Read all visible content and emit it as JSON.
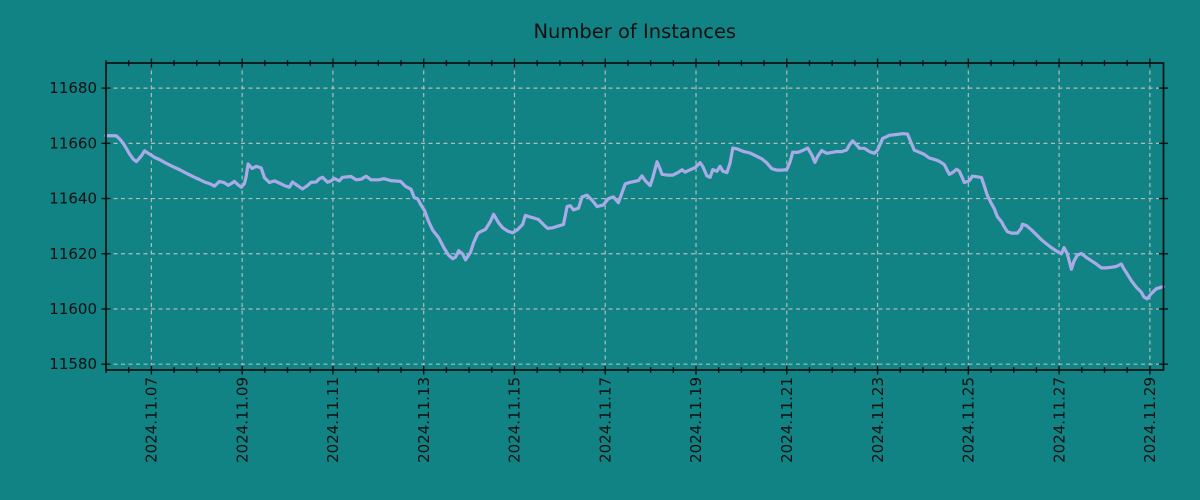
{
  "chart_data": {
    "type": "line",
    "title": "Number of Instances",
    "xlabel": "",
    "ylabel": "",
    "legend": null,
    "grid": true,
    "x_unit": "date (day of November 2024)",
    "xlim": [
      6.0,
      29.3
    ],
    "ylim": [
      11577.9,
      11689.1
    ],
    "y_ticks": [
      11580,
      11600,
      11620,
      11640,
      11660,
      11680
    ],
    "x_ticks": {
      "major_days": [
        7,
        9,
        11,
        13,
        15,
        17,
        19,
        21,
        23,
        25,
        27,
        29
      ],
      "labels": [
        "2024.11.07",
        "2024.11.09",
        "2024.11.11",
        "2024.11.13",
        "2024.11.15",
        "2024.11.17",
        "2024.11.19",
        "2024.11.21",
        "2024.11.23",
        "2024.11.25",
        "2024.11.27",
        "2024.11.29"
      ],
      "minor_step": 0.5,
      "label_rotation_deg": 90
    },
    "colors": {
      "background": "#118384",
      "line": "#a9abe8",
      "grid": "#b8bfbf",
      "axis": "#101010",
      "text": "#101010"
    },
    "series": [
      {
        "name": "Number of Instances",
        "color": "#a9abe8",
        "points": [
          [
            6.0,
            11662.8
          ],
          [
            6.23,
            11662.7
          ],
          [
            6.3,
            11661.6
          ],
          [
            6.38,
            11660.0
          ],
          [
            6.45,
            11658.1
          ],
          [
            6.52,
            11656.1
          ],
          [
            6.6,
            11654.3
          ],
          [
            6.67,
            11653.4
          ],
          [
            6.71,
            11654.1
          ],
          [
            6.78,
            11655.5
          ],
          [
            6.85,
            11657.3
          ],
          [
            6.93,
            11656.4
          ],
          [
            7.0,
            11655.7
          ],
          [
            7.07,
            11654.9
          ],
          [
            7.18,
            11654.1
          ],
          [
            7.29,
            11653.1
          ],
          [
            7.4,
            11652.2
          ],
          [
            7.51,
            11651.3
          ],
          [
            7.62,
            11650.5
          ],
          [
            7.73,
            11649.5
          ],
          [
            7.84,
            11648.6
          ],
          [
            7.95,
            11647.7
          ],
          [
            8.06,
            11646.9
          ],
          [
            8.17,
            11646.0
          ],
          [
            8.28,
            11645.4
          ],
          [
            8.39,
            11644.5
          ],
          [
            8.5,
            11646.2
          ],
          [
            8.61,
            11645.7
          ],
          [
            8.69,
            11644.8
          ],
          [
            8.76,
            11645.4
          ],
          [
            8.83,
            11646.2
          ],
          [
            8.91,
            11645.0
          ],
          [
            8.98,
            11644.1
          ],
          [
            9.05,
            11645.4
          ],
          [
            9.09,
            11648.0
          ],
          [
            9.13,
            11652.5
          ],
          [
            9.22,
            11650.9
          ],
          [
            9.31,
            11651.7
          ],
          [
            9.42,
            11651.1
          ],
          [
            9.49,
            11647.6
          ],
          [
            9.6,
            11645.8
          ],
          [
            9.71,
            11646.4
          ],
          [
            9.82,
            11645.6
          ],
          [
            9.93,
            11644.7
          ],
          [
            10.04,
            11644.1
          ],
          [
            10.11,
            11646.0
          ],
          [
            10.22,
            11644.7
          ],
          [
            10.33,
            11643.5
          ],
          [
            10.44,
            11644.7
          ],
          [
            10.52,
            11645.9
          ],
          [
            10.63,
            11646.0
          ],
          [
            10.7,
            11647.2
          ],
          [
            10.77,
            11647.7
          ],
          [
            10.88,
            11645.9
          ],
          [
            10.96,
            11646.4
          ],
          [
            11.03,
            11647.3
          ],
          [
            11.14,
            11646.4
          ],
          [
            11.21,
            11647.7
          ],
          [
            11.4,
            11648.0
          ],
          [
            11.51,
            11646.8
          ],
          [
            11.62,
            11647.0
          ],
          [
            11.73,
            11648.1
          ],
          [
            11.84,
            11646.8
          ],
          [
            12.01,
            11646.8
          ],
          [
            12.12,
            11647.2
          ],
          [
            12.27,
            11646.5
          ],
          [
            12.49,
            11646.2
          ],
          [
            12.6,
            11644.4
          ],
          [
            12.72,
            11643.4
          ],
          [
            12.79,
            11640.4
          ],
          [
            12.87,
            11639.8
          ],
          [
            12.95,
            11637.4
          ],
          [
            13.02,
            11635.6
          ],
          [
            13.1,
            11632.0
          ],
          [
            13.2,
            11628.5
          ],
          [
            13.33,
            11625.8
          ],
          [
            13.44,
            11622.3
          ],
          [
            13.55,
            11619.4
          ],
          [
            13.64,
            11618.2
          ],
          [
            13.7,
            11618.8
          ],
          [
            13.77,
            11621.1
          ],
          [
            13.86,
            11619.9
          ],
          [
            13.92,
            11617.8
          ],
          [
            14.03,
            11620.5
          ],
          [
            14.1,
            11624.0
          ],
          [
            14.19,
            11627.3
          ],
          [
            14.25,
            11628.0
          ],
          [
            14.36,
            11628.8
          ],
          [
            14.47,
            11631.7
          ],
          [
            14.54,
            11634.3
          ],
          [
            14.65,
            11631.2
          ],
          [
            14.74,
            11629.4
          ],
          [
            14.85,
            11628.2
          ],
          [
            14.96,
            11627.6
          ],
          [
            15.07,
            11628.8
          ],
          [
            15.18,
            11630.6
          ],
          [
            15.24,
            11633.9
          ],
          [
            15.31,
            11633.5
          ],
          [
            15.42,
            11633.0
          ],
          [
            15.53,
            11632.4
          ],
          [
            15.64,
            11630.6
          ],
          [
            15.73,
            11629.2
          ],
          [
            15.84,
            11629.4
          ],
          [
            15.95,
            11630.0
          ],
          [
            16.08,
            11630.6
          ],
          [
            16.16,
            11637.1
          ],
          [
            16.23,
            11637.4
          ],
          [
            16.3,
            11635.9
          ],
          [
            16.41,
            11636.5
          ],
          [
            16.49,
            11640.6
          ],
          [
            16.6,
            11641.2
          ],
          [
            16.71,
            11639.4
          ],
          [
            16.82,
            11637.1
          ],
          [
            16.96,
            11637.7
          ],
          [
            17.07,
            11640.0
          ],
          [
            17.18,
            11640.6
          ],
          [
            17.29,
            11638.5
          ],
          [
            17.44,
            11645.3
          ],
          [
            17.55,
            11645.9
          ],
          [
            17.73,
            11646.5
          ],
          [
            17.81,
            11648.2
          ],
          [
            17.88,
            11646.5
          ],
          [
            17.99,
            11644.7
          ],
          [
            18.05,
            11647.7
          ],
          [
            18.14,
            11653.3
          ],
          [
            18.21,
            11650.6
          ],
          [
            18.25,
            11648.8
          ],
          [
            18.36,
            11648.5
          ],
          [
            18.49,
            11648.5
          ],
          [
            18.6,
            11649.4
          ],
          [
            18.69,
            11650.4
          ],
          [
            18.76,
            11649.6
          ],
          [
            18.87,
            11650.4
          ],
          [
            18.98,
            11651.2
          ],
          [
            19.09,
            11653.0
          ],
          [
            19.15,
            11651.6
          ],
          [
            19.24,
            11648.2
          ],
          [
            19.31,
            11647.7
          ],
          [
            19.37,
            11650.5
          ],
          [
            19.46,
            11649.9
          ],
          [
            19.53,
            11651.7
          ],
          [
            19.59,
            11649.9
          ],
          [
            19.68,
            11649.4
          ],
          [
            19.75,
            11652.9
          ],
          [
            19.81,
            11658.3
          ],
          [
            19.92,
            11657.9
          ],
          [
            20.03,
            11657.1
          ],
          [
            20.19,
            11656.5
          ],
          [
            20.34,
            11655.3
          ],
          [
            20.45,
            11654.4
          ],
          [
            20.56,
            11652.9
          ],
          [
            20.67,
            11650.8
          ],
          [
            20.78,
            11650.3
          ],
          [
            20.89,
            11650.3
          ],
          [
            21.0,
            11650.5
          ],
          [
            21.07,
            11653.2
          ],
          [
            21.13,
            11656.8
          ],
          [
            21.24,
            11656.7
          ],
          [
            21.35,
            11657.4
          ],
          [
            21.46,
            11658.3
          ],
          [
            21.55,
            11655.8
          ],
          [
            21.62,
            11653.1
          ],
          [
            21.68,
            11655.3
          ],
          [
            21.77,
            11657.4
          ],
          [
            21.88,
            11656.4
          ],
          [
            21.99,
            11656.7
          ],
          [
            22.1,
            11657.0
          ],
          [
            22.21,
            11657.0
          ],
          [
            22.32,
            11657.6
          ],
          [
            22.38,
            11659.4
          ],
          [
            22.45,
            11660.9
          ],
          [
            22.54,
            11659.4
          ],
          [
            22.6,
            11658.2
          ],
          [
            22.71,
            11658.2
          ],
          [
            22.82,
            11657.0
          ],
          [
            22.93,
            11656.4
          ],
          [
            23.0,
            11657.6
          ],
          [
            23.11,
            11661.7
          ],
          [
            23.26,
            11662.9
          ],
          [
            23.42,
            11663.2
          ],
          [
            23.55,
            11663.5
          ],
          [
            23.66,
            11663.4
          ],
          [
            23.7,
            11661.8
          ],
          [
            23.81,
            11657.5
          ],
          [
            23.92,
            11656.8
          ],
          [
            24.03,
            11656.0
          ],
          [
            24.14,
            11654.7
          ],
          [
            24.25,
            11654.2
          ],
          [
            24.36,
            11653.5
          ],
          [
            24.47,
            11652.3
          ],
          [
            24.58,
            11648.8
          ],
          [
            24.65,
            11649.4
          ],
          [
            24.74,
            11650.6
          ],
          [
            24.8,
            11649.9
          ],
          [
            24.85,
            11648.2
          ],
          [
            24.91,
            11645.8
          ],
          [
            25.02,
            11646.4
          ],
          [
            25.09,
            11648.1
          ],
          [
            25.18,
            11647.9
          ],
          [
            25.29,
            11647.6
          ],
          [
            25.35,
            11644.7
          ],
          [
            25.42,
            11641.1
          ],
          [
            25.51,
            11638.1
          ],
          [
            25.57,
            11636.4
          ],
          [
            25.64,
            11633.4
          ],
          [
            25.73,
            11631.6
          ],
          [
            25.79,
            11629.8
          ],
          [
            25.86,
            11628.0
          ],
          [
            25.95,
            11627.5
          ],
          [
            26.08,
            11627.5
          ],
          [
            26.17,
            11629.3
          ],
          [
            26.19,
            11630.7
          ],
          [
            26.28,
            11630.2
          ],
          [
            26.39,
            11628.7
          ],
          [
            26.5,
            11626.9
          ],
          [
            26.61,
            11625.1
          ],
          [
            26.72,
            11623.6
          ],
          [
            26.83,
            11622.2
          ],
          [
            26.94,
            11621.0
          ],
          [
            27.05,
            11620.0
          ],
          [
            27.11,
            11622.2
          ],
          [
            27.18,
            11620.0
          ],
          [
            27.27,
            11614.4
          ],
          [
            27.33,
            11617.4
          ],
          [
            27.4,
            11619.5
          ],
          [
            27.49,
            11620.1
          ],
          [
            27.6,
            11618.7
          ],
          [
            27.71,
            11617.5
          ],
          [
            27.82,
            11616.3
          ],
          [
            27.93,
            11614.9
          ],
          [
            28.04,
            11614.9
          ],
          [
            28.15,
            11615.1
          ],
          [
            28.26,
            11615.4
          ],
          [
            28.37,
            11616.3
          ],
          [
            28.43,
            11614.5
          ],
          [
            28.5,
            11612.7
          ],
          [
            28.59,
            11610.3
          ],
          [
            28.7,
            11607.9
          ],
          [
            28.81,
            11606.1
          ],
          [
            28.87,
            11604.3
          ],
          [
            28.94,
            11603.7
          ],
          [
            29.03,
            11605.5
          ],
          [
            29.14,
            11607.3
          ],
          [
            29.25,
            11607.9
          ],
          [
            29.3,
            11608.1
          ]
        ]
      }
    ]
  }
}
